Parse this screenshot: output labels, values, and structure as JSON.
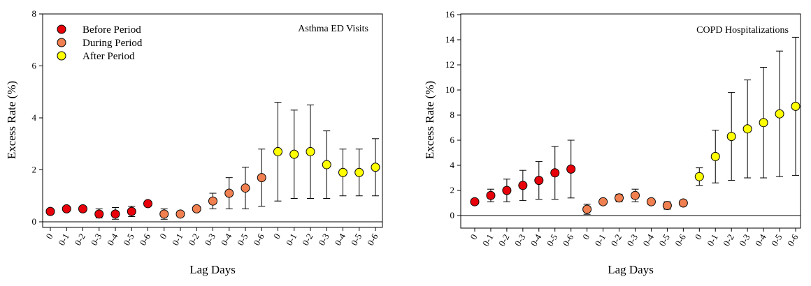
{
  "chart_data": [
    {
      "type": "scatter",
      "title": "Asthma ED Visits",
      "xlabel": "Lag Days",
      "ylabel": "Excess Rate (%)",
      "ylim": [
        0,
        8
      ],
      "yticks": [
        0,
        2,
        4,
        6,
        8
      ],
      "reference_line": 0,
      "categories": [
        "0",
        "0-1",
        "0-2",
        "0-3",
        "0-4",
        "0-5",
        "0-6",
        "0",
        "0-1",
        "0-2",
        "0-3",
        "0-4",
        "0-5",
        "0-6",
        "0",
        "0-1",
        "0-2",
        "0-3",
        "0-4",
        "0-5",
        "0-6"
      ],
      "legend": {
        "placement": "top-left",
        "entries": [
          {
            "label": "Before Period",
            "color": "#e8000a"
          },
          {
            "label": "During Period",
            "color": "#f08050"
          },
          {
            "label": "After Period",
            "color": "#ffff00"
          }
        ]
      },
      "series": [
        {
          "name": "Before Period",
          "color": "#e8000a",
          "values": [
            0.4,
            0.5,
            0.5,
            0.3,
            0.3,
            0.4,
            0.7
          ],
          "lower": [
            0.35,
            0.45,
            0.42,
            0.15,
            0.1,
            0.2,
            0.6
          ],
          "upper": [
            0.45,
            0.58,
            0.6,
            0.5,
            0.55,
            0.6,
            0.8
          ]
        },
        {
          "name": "During Period",
          "color": "#f08050",
          "values": [
            0.3,
            0.3,
            0.5,
            0.8,
            1.1,
            1.3,
            1.7
          ],
          "lower": [
            0.1,
            0.25,
            0.4,
            0.5,
            0.5,
            0.5,
            0.6
          ],
          "upper": [
            0.5,
            0.38,
            0.6,
            1.1,
            1.7,
            2.1,
            2.8
          ]
        },
        {
          "name": "After Period",
          "color": "#ffff00",
          "values": [
            2.7,
            2.6,
            2.7,
            2.2,
            1.9,
            1.9,
            2.1
          ],
          "lower": [
            0.8,
            0.9,
            0.9,
            0.9,
            1.0,
            1.0,
            1.0
          ],
          "upper": [
            4.6,
            4.3,
            4.5,
            3.5,
            2.8,
            2.8,
            3.2
          ]
        }
      ]
    },
    {
      "type": "scatter",
      "title": "COPD Hospitalizations",
      "xlabel": "Lag Days",
      "ylabel": "Excess Rate (%)",
      "ylim": [
        -1,
        16
      ],
      "yticks": [
        0,
        2,
        4,
        6,
        8,
        10,
        12,
        14,
        16
      ],
      "reference_line": 0,
      "categories": [
        "0",
        "0-1",
        "0-2",
        "0-3",
        "0-4",
        "0-5",
        "0-6",
        "0",
        "0-1",
        "0-2",
        "0-3",
        "0-4",
        "0-5",
        "0-6",
        "0",
        "0-1",
        "0-2",
        "0-3",
        "0-4",
        "0-5",
        "0-6"
      ],
      "series": [
        {
          "name": "Before Period",
          "color": "#e8000a",
          "values": [
            1.1,
            1.6,
            2.0,
            2.4,
            2.8,
            3.4,
            3.7
          ],
          "lower": [
            0.9,
            1.1,
            1.1,
            1.2,
            1.3,
            1.3,
            1.4
          ],
          "upper": [
            1.3,
            2.1,
            2.9,
            3.6,
            4.3,
            5.5,
            6.0
          ]
        },
        {
          "name": "During Period",
          "color": "#f08050",
          "values": [
            0.5,
            1.1,
            1.4,
            1.6,
            1.1,
            0.8,
            1.0
          ],
          "lower": [
            0.1,
            0.9,
            1.1,
            1.1,
            0.9,
            0.5,
            0.8
          ],
          "upper": [
            0.9,
            1.3,
            1.7,
            2.1,
            1.3,
            1.1,
            1.2
          ]
        },
        {
          "name": "After Period",
          "color": "#ffff00",
          "values": [
            3.1,
            4.7,
            6.3,
            6.9,
            7.4,
            8.1,
            8.7
          ],
          "lower": [
            2.4,
            2.6,
            2.8,
            3.0,
            3.0,
            3.1,
            3.2
          ],
          "upper": [
            3.8,
            6.8,
            9.8,
            10.8,
            11.8,
            13.1,
            14.2
          ]
        }
      ]
    }
  ]
}
